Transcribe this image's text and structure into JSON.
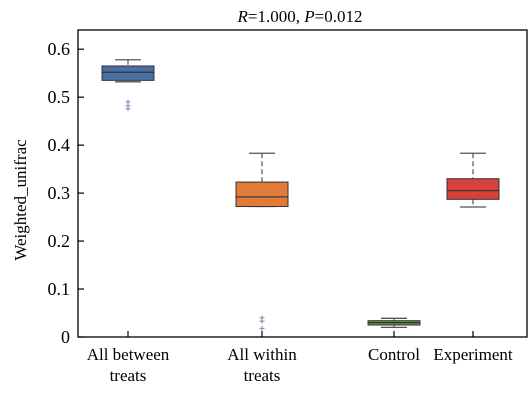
{
  "chart_data": {
    "type": "box",
    "title_parts": [
      {
        "text": "R",
        "italic": true
      },
      {
        "text": "=1.000, ",
        "italic": false
      },
      {
        "text": "P",
        "italic": true
      },
      {
        "text": "=0.012",
        "italic": false
      }
    ],
    "ylabel": "Weighted_unifrac",
    "xlabel": "",
    "ylim": [
      0,
      0.64
    ],
    "yticks": [
      0,
      0.1,
      0.2,
      0.3,
      0.4,
      0.5,
      0.6
    ],
    "ytick_labels": [
      "0",
      "0.1",
      "0.2",
      "0.3",
      "0.4",
      "0.5",
      "0.6"
    ],
    "grid": false,
    "categories": [
      {
        "label_lines": [
          "All between",
          "treats"
        ]
      },
      {
        "label_lines": [
          "All within",
          "treats"
        ]
      },
      {
        "label_lines": [
          "Control"
        ]
      },
      {
        "label_lines": [
          "Experiment"
        ]
      }
    ],
    "boxes": [
      {
        "whisker_low": 0.532,
        "q1": 0.535,
        "median": 0.552,
        "q3": 0.565,
        "whisker_high": 0.578,
        "outliers": [
          0.476,
          0.482,
          0.49
        ],
        "color": "#4a6fa5"
      },
      {
        "whisker_low": 0.272,
        "q1": 0.272,
        "median": 0.292,
        "q3": 0.323,
        "whisker_high": 0.383,
        "outliers": [
          0.018,
          0.033,
          0.04
        ],
        "color": "#e07b3a"
      },
      {
        "whisker_low": 0.02,
        "q1": 0.025,
        "median": 0.03,
        "q3": 0.034,
        "whisker_high": 0.039,
        "outliers": [],
        "color": "#5a9a45"
      },
      {
        "whisker_low": 0.271,
        "q1": 0.287,
        "median": 0.305,
        "q3": 0.33,
        "whisker_high": 0.383,
        "outliers": [],
        "color": "#d8403a"
      }
    ]
  }
}
